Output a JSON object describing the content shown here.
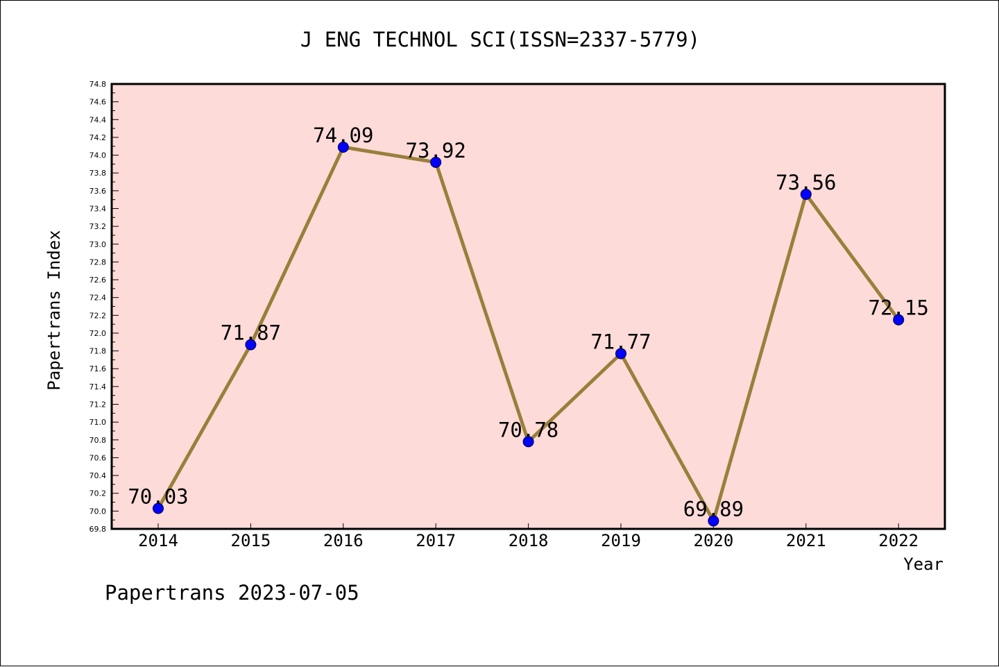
{
  "chart_data": {
    "type": "line",
    "title": "J ENG TECHNOL SCI(ISSN=2337-5779)",
    "xlabel": "Year",
    "ylabel": "Papertrans Index",
    "footer": "Papertrans 2023-07-05",
    "categories": [
      "2014",
      "2015",
      "2016",
      "2017",
      "2018",
      "2019",
      "2020",
      "2021",
      "2022"
    ],
    "series": [
      {
        "values": [
          70.03,
          71.87,
          74.09,
          73.92,
          70.78,
          71.77,
          69.89,
          73.56,
          72.15
        ],
        "labels": [
          "70.03",
          "71.87",
          "74.09",
          "73.92",
          "70.78",
          "71.77",
          "69.89",
          "73.56",
          "72.15"
        ]
      }
    ],
    "ylim": [
      69.8,
      74.8
    ],
    "ytick_step": 0.2,
    "ytick_minor_step": 0.1,
    "grid": false,
    "colors": {
      "plot_background": "#fddbd9",
      "line": "#9a7f3a",
      "marker": "#0000ff",
      "axis": "#000000"
    }
  }
}
